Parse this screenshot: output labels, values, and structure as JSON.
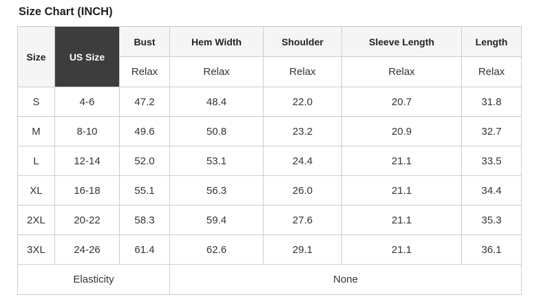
{
  "title": "Size Chart (INCH)",
  "colors": {
    "header_bg": "#f5f5f5",
    "us_size_header_bg": "#3d3d3d",
    "us_size_header_text": "#ffffff",
    "border": "#cccccc",
    "text": "#333333"
  },
  "table": {
    "columns": [
      "Size",
      "US Size",
      "Bust",
      "Hem Width",
      "Shoulder",
      "Sleeve Length",
      "Length"
    ],
    "fit_row": [
      "Relax",
      "Relax",
      "Relax",
      "Relax",
      "Relax"
    ],
    "rows": [
      {
        "size": "S",
        "us_size": "4-6",
        "values": [
          "47.2",
          "48.4",
          "22.0",
          "20.7",
          "31.8"
        ]
      },
      {
        "size": "M",
        "us_size": "8-10",
        "values": [
          "49.6",
          "50.8",
          "23.2",
          "20.9",
          "32.7"
        ]
      },
      {
        "size": "L",
        "us_size": "12-14",
        "values": [
          "52.0",
          "53.1",
          "24.4",
          "21.1",
          "33.5"
        ]
      },
      {
        "size": "XL",
        "us_size": "16-18",
        "values": [
          "55.1",
          "56.3",
          "26.0",
          "21.1",
          "34.4"
        ]
      },
      {
        "size": "2XL",
        "us_size": "20-22",
        "values": [
          "58.3",
          "59.4",
          "27.6",
          "21.1",
          "35.3"
        ]
      },
      {
        "size": "3XL",
        "us_size": "24-26",
        "values": [
          "61.4",
          "62.6",
          "29.1",
          "21.1",
          "36.1"
        ]
      }
    ],
    "footer": {
      "label": "Elasticity",
      "value": "None"
    }
  },
  "chart_data": {
    "type": "table",
    "title": "Size Chart (INCH)",
    "unit": "INCH",
    "columns": [
      "Size",
      "US Size",
      "Bust (Relax)",
      "Hem Width (Relax)",
      "Shoulder (Relax)",
      "Sleeve Length (Relax)",
      "Length (Relax)"
    ],
    "rows": [
      [
        "S",
        "4-6",
        47.2,
        48.4,
        22.0,
        20.7,
        31.8
      ],
      [
        "M",
        "8-10",
        49.6,
        50.8,
        23.2,
        20.9,
        32.7
      ],
      [
        "L",
        "12-14",
        52.0,
        53.1,
        24.4,
        21.1,
        33.5
      ],
      [
        "XL",
        "16-18",
        55.1,
        56.3,
        26.0,
        21.1,
        34.4
      ],
      [
        "2XL",
        "20-22",
        58.3,
        59.4,
        27.6,
        21.1,
        35.3
      ],
      [
        "3XL",
        "24-26",
        61.4,
        62.6,
        29.1,
        21.1,
        36.1
      ]
    ],
    "footer_row": [
      "Elasticity",
      "None"
    ]
  }
}
